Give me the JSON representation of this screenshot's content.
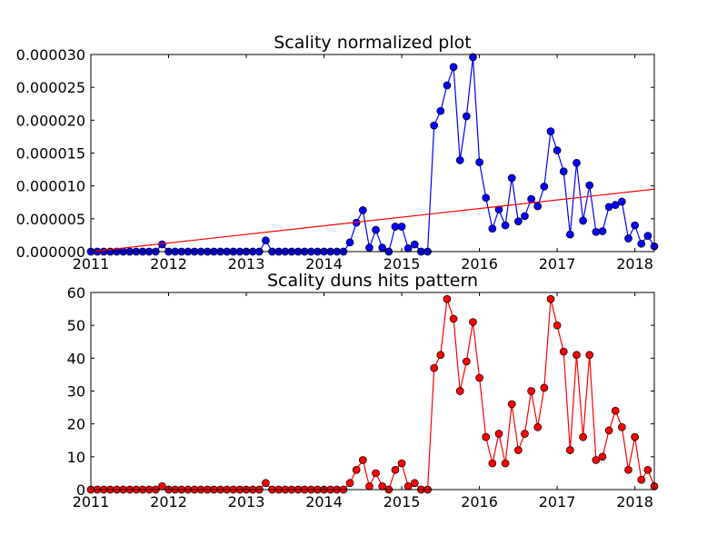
{
  "chart_data": [
    {
      "type": "line",
      "title": "Scality normalized plot",
      "xlabel": "",
      "ylabel": "",
      "x_ticks": [
        "2011",
        "2012",
        "2013",
        "2014",
        "2015",
        "2016",
        "2017",
        "2018"
      ],
      "y_ticks": [
        "0.000000",
        "0.000005",
        "0.000010",
        "0.000015",
        "0.000020",
        "0.000025",
        "0.000030"
      ],
      "xlim": [
        "2011-01",
        "2018-04"
      ],
      "ylim": [
        0,
        3e-05
      ],
      "grid": false,
      "series": [
        {
          "marker": "circle",
          "color": "#0000ff",
          "points": [
            [
              "2011-01",
              0
            ],
            [
              "2011-02",
              0
            ],
            [
              "2011-03",
              0
            ],
            [
              "2011-04",
              0
            ],
            [
              "2011-05",
              0
            ],
            [
              "2011-06",
              0
            ],
            [
              "2011-07",
              0
            ],
            [
              "2011-08",
              0
            ],
            [
              "2011-09",
              0
            ],
            [
              "2011-10",
              0
            ],
            [
              "2011-11",
              0
            ],
            [
              "2011-12",
              1.1e-06
            ],
            [
              "2012-01",
              0
            ],
            [
              "2012-02",
              0
            ],
            [
              "2012-03",
              0
            ],
            [
              "2012-04",
              0
            ],
            [
              "2012-05",
              0
            ],
            [
              "2012-06",
              0
            ],
            [
              "2012-07",
              0
            ],
            [
              "2012-08",
              0
            ],
            [
              "2012-09",
              0
            ],
            [
              "2012-10",
              0
            ],
            [
              "2012-11",
              0
            ],
            [
              "2012-12",
              0
            ],
            [
              "2013-01",
              0
            ],
            [
              "2013-02",
              0
            ],
            [
              "2013-03",
              0
            ],
            [
              "2013-04",
              1.7e-06
            ],
            [
              "2013-05",
              0
            ],
            [
              "2013-06",
              0
            ],
            [
              "2013-07",
              0
            ],
            [
              "2013-08",
              0
            ],
            [
              "2013-09",
              0
            ],
            [
              "2013-10",
              0
            ],
            [
              "2013-11",
              0
            ],
            [
              "2013-12",
              0
            ],
            [
              "2014-01",
              0
            ],
            [
              "2014-02",
              0
            ],
            [
              "2014-03",
              0
            ],
            [
              "2014-04",
              0
            ],
            [
              "2014-05",
              1.4e-06
            ],
            [
              "2014-06",
              4.4e-06
            ],
            [
              "2014-07",
              6.3e-06
            ],
            [
              "2014-08",
              6e-07
            ],
            [
              "2014-09",
              3.3e-06
            ],
            [
              "2014-10",
              6e-07
            ],
            [
              "2014-11",
              0
            ],
            [
              "2014-12",
              3.8e-06
            ],
            [
              "2015-01",
              3.8e-06
            ],
            [
              "2015-02",
              5e-07
            ],
            [
              "2015-03",
              1.1e-06
            ],
            [
              "2015-04",
              0
            ],
            [
              "2015-05",
              0
            ],
            [
              "2015-06",
              1.92e-05
            ],
            [
              "2015-07",
              2.14e-05
            ],
            [
              "2015-08",
              2.53e-05
            ],
            [
              "2015-09",
              2.81e-05
            ],
            [
              "2015-10",
              1.39e-05
            ],
            [
              "2015-11",
              2.06e-05
            ],
            [
              "2015-12",
              2.96e-05
            ],
            [
              "2016-01",
              1.36e-05
            ],
            [
              "2016-02",
              8.2e-06
            ],
            [
              "2016-03",
              3.5e-06
            ],
            [
              "2016-04",
              6.4e-06
            ],
            [
              "2016-05",
              4e-06
            ],
            [
              "2016-06",
              1.12e-05
            ],
            [
              "2016-07",
              4.6e-06
            ],
            [
              "2016-08",
              5.4e-06
            ],
            [
              "2016-09",
              8e-06
            ],
            [
              "2016-10",
              6.9e-06
            ],
            [
              "2016-11",
              9.9e-06
            ],
            [
              "2016-12",
              1.83e-05
            ],
            [
              "2017-01",
              1.54e-05
            ],
            [
              "2017-02",
              1.22e-05
            ],
            [
              "2017-03",
              2.6e-06
            ],
            [
              "2017-04",
              1.35e-05
            ],
            [
              "2017-05",
              4.7e-06
            ],
            [
              "2017-06",
              1.01e-05
            ],
            [
              "2017-07",
              3e-06
            ],
            [
              "2017-08",
              3.1e-06
            ],
            [
              "2017-09",
              6.8e-06
            ],
            [
              "2017-10",
              7.1e-06
            ],
            [
              "2017-11",
              7.6e-06
            ],
            [
              "2017-12",
              2e-06
            ],
            [
              "2018-01",
              4e-06
            ],
            [
              "2018-02",
              1.2e-06
            ],
            [
              "2018-03",
              2.4e-06
            ],
            [
              "2018-04",
              8e-07
            ]
          ]
        },
        {
          "type": "trend-line",
          "color": "#ff0000",
          "marker": "none",
          "points": [
            [
              "2011-01",
              0
            ],
            [
              "2018-04",
              9.5e-06
            ]
          ]
        }
      ]
    },
    {
      "type": "line",
      "title": "Scality duns hits pattern",
      "xlabel": "",
      "ylabel": "",
      "x_ticks": [
        "2011",
        "2012",
        "2013",
        "2014",
        "2015",
        "2016",
        "2017",
        "2018"
      ],
      "y_ticks": [
        "0",
        "10",
        "20",
        "30",
        "40",
        "50",
        "60"
      ],
      "xlim": [
        "2011-01",
        "2018-04"
      ],
      "ylim": [
        0,
        60
      ],
      "grid": false,
      "series": [
        {
          "marker": "circle",
          "color": "#ff0000",
          "points": [
            [
              "2011-01",
              0
            ],
            [
              "2011-02",
              0
            ],
            [
              "2011-03",
              0
            ],
            [
              "2011-04",
              0
            ],
            [
              "2011-05",
              0
            ],
            [
              "2011-06",
              0
            ],
            [
              "2011-07",
              0
            ],
            [
              "2011-08",
              0
            ],
            [
              "2011-09",
              0
            ],
            [
              "2011-10",
              0
            ],
            [
              "2011-11",
              0
            ],
            [
              "2011-12",
              1
            ],
            [
              "2012-01",
              0
            ],
            [
              "2012-02",
              0
            ],
            [
              "2012-03",
              0
            ],
            [
              "2012-04",
              0
            ],
            [
              "2012-05",
              0
            ],
            [
              "2012-06",
              0
            ],
            [
              "2012-07",
              0
            ],
            [
              "2012-08",
              0
            ],
            [
              "2012-09",
              0
            ],
            [
              "2012-10",
              0
            ],
            [
              "2012-11",
              0
            ],
            [
              "2012-12",
              0
            ],
            [
              "2013-01",
              0
            ],
            [
              "2013-02",
              0
            ],
            [
              "2013-03",
              0
            ],
            [
              "2013-04",
              2
            ],
            [
              "2013-05",
              0
            ],
            [
              "2013-06",
              0
            ],
            [
              "2013-07",
              0
            ],
            [
              "2013-08",
              0
            ],
            [
              "2013-09",
              0
            ],
            [
              "2013-10",
              0
            ],
            [
              "2013-11",
              0
            ],
            [
              "2013-12",
              0
            ],
            [
              "2014-01",
              0
            ],
            [
              "2014-02",
              0
            ],
            [
              "2014-03",
              0
            ],
            [
              "2014-04",
              0
            ],
            [
              "2014-05",
              2
            ],
            [
              "2014-06",
              6
            ],
            [
              "2014-07",
              9
            ],
            [
              "2014-08",
              1
            ],
            [
              "2014-09",
              5
            ],
            [
              "2014-10",
              1
            ],
            [
              "2014-11",
              0
            ],
            [
              "2014-12",
              6
            ],
            [
              "2015-01",
              8
            ],
            [
              "2015-02",
              1
            ],
            [
              "2015-03",
              2
            ],
            [
              "2015-04",
              0
            ],
            [
              "2015-05",
              0
            ],
            [
              "2015-06",
              37
            ],
            [
              "2015-07",
              41
            ],
            [
              "2015-08",
              58
            ],
            [
              "2015-09",
              52
            ],
            [
              "2015-10",
              30
            ],
            [
              "2015-11",
              39
            ],
            [
              "2015-12",
              51
            ],
            [
              "2016-01",
              34
            ],
            [
              "2016-02",
              16
            ],
            [
              "2016-03",
              8
            ],
            [
              "2016-04",
              17
            ],
            [
              "2016-05",
              8
            ],
            [
              "2016-06",
              26
            ],
            [
              "2016-07",
              12
            ],
            [
              "2016-08",
              17
            ],
            [
              "2016-09",
              30
            ],
            [
              "2016-10",
              19
            ],
            [
              "2016-11",
              31
            ],
            [
              "2016-12",
              58
            ],
            [
              "2017-01",
              50
            ],
            [
              "2017-02",
              42
            ],
            [
              "2017-03",
              12
            ],
            [
              "2017-04",
              41
            ],
            [
              "2017-05",
              16
            ],
            [
              "2017-06",
              41
            ],
            [
              "2017-07",
              9
            ],
            [
              "2017-08",
              10
            ],
            [
              "2017-09",
              18
            ],
            [
              "2017-10",
              24
            ],
            [
              "2017-11",
              19
            ],
            [
              "2017-12",
              6
            ],
            [
              "2018-01",
              16
            ],
            [
              "2018-02",
              3
            ],
            [
              "2018-03",
              6
            ],
            [
              "2018-04",
              1
            ]
          ]
        }
      ]
    }
  ]
}
